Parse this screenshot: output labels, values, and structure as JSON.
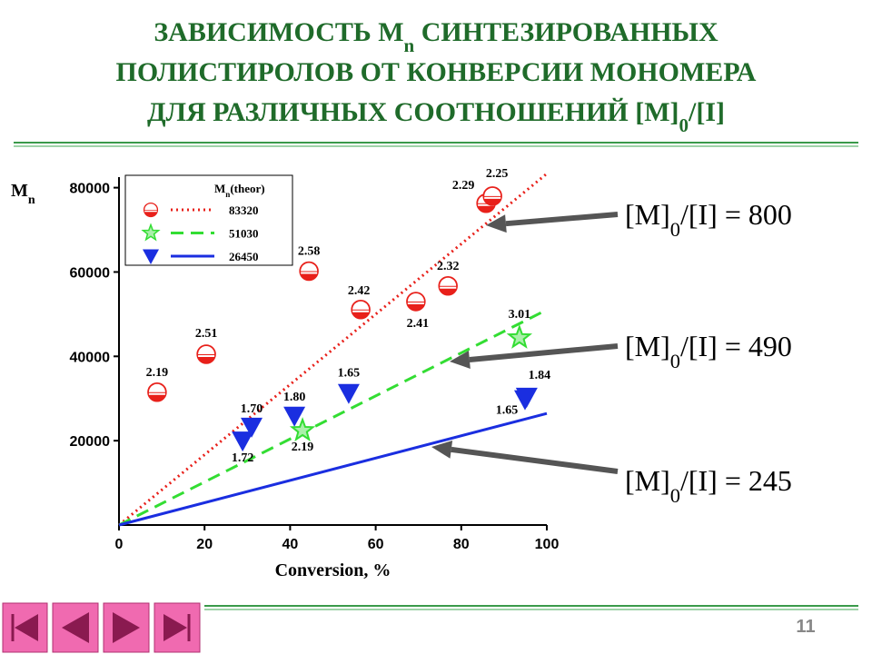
{
  "slide": {
    "title_lines": [
      [
        "ЗАВИСИМОСТЬ M",
        "n",
        " СИНТЕЗИРОВАННЫХ"
      ],
      [
        "ПОЛИСТИРОЛОВ ОТ КОНВЕРСИИ МОНОМЕРА"
      ],
      [
        "ДЛЯ РАЗЛИЧНЫХ СООТНОШЕНИЙ [M]",
        "0",
        "/[I]"
      ]
    ],
    "annotations": [
      [
        "[M]",
        "0",
        "/[I] = 800"
      ],
      [
        "[M]",
        "0",
        "/[I] = 490"
      ],
      [
        "[M]",
        "0",
        "/[I] = 245"
      ]
    ],
    "page_number": "11"
  },
  "chart_data": {
    "type": "scatter",
    "x_label": "Conversion, %",
    "y_label": [
      "M",
      "n"
    ],
    "legend_title": [
      "M",
      "n",
      "(theor)"
    ],
    "xlim": [
      0,
      100
    ],
    "ylim": [
      0,
      82500
    ],
    "xticks": [
      0,
      20,
      40,
      60,
      80,
      100
    ],
    "yticks": [
      20000,
      40000,
      60000,
      80000
    ],
    "series": [
      {
        "marker": "half-circle",
        "color": "#e8201a",
        "x": [
          8.9,
          20.4,
          44.4,
          56.5,
          69.4,
          76.9,
          85.8,
          87.3
        ],
        "values": [
          31500,
          40500,
          60200,
          51100,
          53000,
          56700,
          76300,
          78000
        ],
        "labels": [
          "2.19",
          "2.51",
          "2.58",
          "2.42",
          "2.41",
          "2.32",
          "2.29",
          "2.25"
        ]
      },
      {
        "marker": "star",
        "color": "#33dd33",
        "x": [
          42.9,
          93.6
        ],
        "values": [
          22400,
          44400
        ],
        "labels": [
          "2.19",
          "3.01"
        ]
      },
      {
        "marker": "triangle-down",
        "color": "#1a2ee0",
        "x": [
          28.9,
          31.0,
          41.0,
          53.7,
          95.3,
          94.9
        ],
        "values": [
          20000,
          23300,
          25900,
          31300,
          30400,
          29800
        ],
        "labels": [
          "1.72",
          "1.70",
          "1.80",
          "1.65",
          "1.84",
          "1.65"
        ]
      }
    ],
    "lines": [
      {
        "name": "83320",
        "color": "#e8201a",
        "style": "dotted",
        "x": [
          0,
          100
        ],
        "values": [
          0,
          83320
        ]
      },
      {
        "name": "51030",
        "color": "#33dd33",
        "style": "dashed",
        "x": [
          0,
          100
        ],
        "values": [
          0,
          51030
        ]
      },
      {
        "name": "26450",
        "color": "#1a2ee0",
        "style": "solid",
        "x": [
          0,
          100
        ],
        "values": [
          0,
          26450
        ]
      }
    ]
  }
}
